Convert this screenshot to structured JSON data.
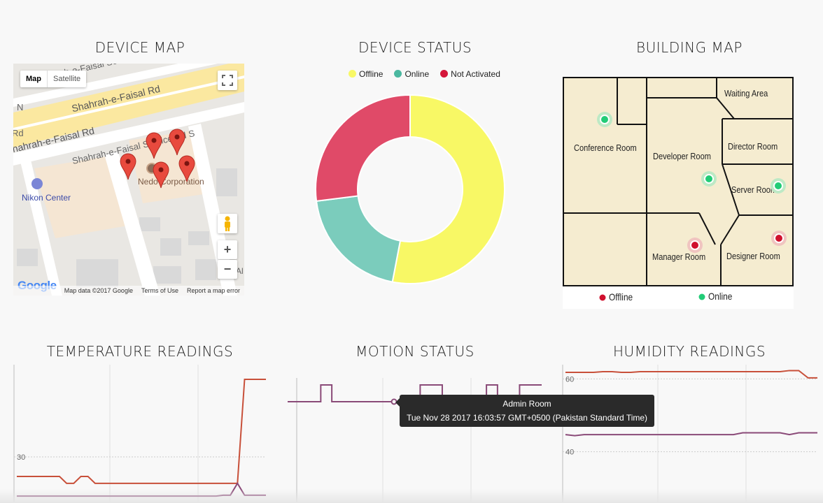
{
  "titles": {
    "device_map": "DEVICE MAP",
    "device_status": "DEVICE STATUS",
    "building_map": "BUILDING MAP",
    "temperature": "TEMPERATURE READINGS",
    "motion": "MOTION STATUS",
    "humidity": "HUMIDITY READINGS"
  },
  "map": {
    "type_map": "Map",
    "type_satellite": "Satellite",
    "roads": {
      "faisal_service": "Shahrah-e-Faisal Service Rd",
      "faisal_1": "Shahrah-e-Faisal Rd",
      "faisal_2": "Shahrah-e-Faisal Rd",
      "faisal_service_s": "Shahrah-e-Faisal Service Rd S",
      "left_n": "N",
      "left_rd": "Rd",
      "right_al": "Al"
    },
    "places": {
      "nikon": "Nikon Center",
      "nedo": "Nedo Corporation"
    },
    "zoom_in": "+",
    "zoom_out": "−",
    "google_logo": "Google",
    "footer": {
      "data": "Map data ©2017 Google",
      "terms": "Terms of Use",
      "report": "Report a map error"
    },
    "marker_count": 5
  },
  "status_legend": [
    {
      "label": "Offline",
      "color": "#f8f865"
    },
    {
      "label": "Online",
      "color": "#4bb8a0"
    },
    {
      "label": "Not Activated",
      "color": "#d4163a"
    }
  ],
  "chart_data": [
    {
      "type": "pie",
      "title": "DEVICE STATUS",
      "categories": [
        "Offline",
        "Online",
        "Not Activated"
      ],
      "values": [
        53,
        20,
        27
      ],
      "colors": [
        "#f8f865",
        "#7bccbc",
        "#e04a68"
      ],
      "donut": true
    },
    {
      "type": "line",
      "title": "TEMPERATURE READINGS",
      "ylim": [
        25,
        40
      ],
      "yticks": [
        30
      ],
      "x": [
        0,
        1,
        2,
        3,
        4,
        5,
        6,
        7,
        8,
        9,
        10,
        11,
        12,
        13,
        14,
        15,
        16,
        17,
        18,
        19,
        20,
        21,
        22,
        23,
        24,
        25,
        26,
        27,
        28,
        29,
        30,
        31,
        32,
        33,
        34,
        35
      ],
      "series": [
        {
          "color": "#c8503a",
          "values": [
            27.7,
            27.7,
            27.7,
            27.7,
            27.7,
            27.7,
            27.7,
            26.9,
            26.9,
            27.7,
            27.7,
            26.9,
            26.9,
            26.9,
            26.9,
            26.9,
            26.9,
            26.9,
            26.9,
            26.9,
            26.9,
            26.9,
            26.9,
            26.9,
            26.9,
            26.9,
            26.9,
            26.9,
            26.9,
            26.9,
            26.9,
            26.9,
            39.1,
            39.1,
            39.1,
            39.1
          ]
        },
        {
          "color": "#8a4a78",
          "values": [
            25.4,
            25.4,
            25.4,
            25.4,
            25.4,
            25.4,
            25.4,
            25.4,
            25.4,
            25.4,
            25.4,
            25.4,
            25.4,
            25.4,
            25.4,
            25.4,
            25.4,
            25.4,
            25.4,
            25.4,
            25.4,
            25.4,
            25.4,
            25.4,
            25.4,
            25.4,
            25.4,
            25.4,
            25.4,
            25.5,
            25.5,
            26.9,
            25.5,
            25.5,
            25.5,
            25.5
          ]
        }
      ]
    },
    {
      "type": "line",
      "title": "MOTION STATUS",
      "ylim": [
        0,
        1
      ],
      "step": true,
      "x": [
        0,
        1,
        2,
        3,
        4,
        5,
        6,
        7,
        8,
        9,
        10,
        11,
        12,
        13,
        14,
        15,
        16,
        17,
        18,
        19,
        20,
        21,
        22,
        23
      ],
      "series": [
        {
          "name": "Admin Room",
          "color": "#8a4a78",
          "values": [
            0,
            0,
            0,
            1,
            0,
            0,
            0,
            0,
            0,
            0,
            0,
            0,
            1,
            1,
            0,
            0,
            0,
            0,
            1,
            0,
            0,
            1,
            1,
            1
          ]
        }
      ]
    },
    {
      "type": "line",
      "title": "HUMIDITY READINGS",
      "ylim": [
        38,
        62
      ],
      "yticks": [
        40,
        60
      ],
      "x": [
        0,
        1,
        2,
        3,
        4,
        5,
        6,
        7,
        8,
        9,
        10,
        11,
        12,
        13,
        14,
        15,
        16,
        17,
        18,
        19,
        20,
        21,
        22,
        23,
        24,
        25,
        26,
        27
      ],
      "series": [
        {
          "color": "#c8503a",
          "values": [
            61.8,
            61.8,
            61.8,
            61.8,
            62.0,
            62.0,
            61.8,
            61.8,
            62.0,
            62.0,
            62.0,
            62.0,
            62.0,
            62.0,
            62.0,
            62.0,
            62.0,
            62.0,
            62.0,
            62.0,
            62.0,
            62.0,
            62.0,
            62.0,
            62.3,
            62.3,
            60.3,
            60.3
          ]
        },
        {
          "color": "#8a4a78",
          "values": [
            44.7,
            44.4,
            44.7,
            44.7,
            44.7,
            44.7,
            44.7,
            44.7,
            44.7,
            44.7,
            44.7,
            44.7,
            44.7,
            44.7,
            44.7,
            44.7,
            44.7,
            44.7,
            44.7,
            45.2,
            45.2,
            45.2,
            45.2,
            45.2,
            44.7,
            45.2,
            45.2,
            45.2
          ]
        }
      ]
    }
  ],
  "building": {
    "rooms": {
      "waiting": "Waiting Area",
      "conference": "Conference Room",
      "developer": "Developer Room",
      "director": "Director Room",
      "server": "Server Room",
      "manager": "Manager Room",
      "designer": "Designer Room"
    },
    "legend_offline": "Offline",
    "legend_online": "Online",
    "offline_color": "#d0102e",
    "online_color": "#22cc77",
    "floor_color": "#f5ecd0"
  },
  "tooltip": {
    "title": "Admin Room",
    "time": "Tue Nov 28 2017 16:03:57 GMT+0500 (Pakistan Standard Time)"
  }
}
